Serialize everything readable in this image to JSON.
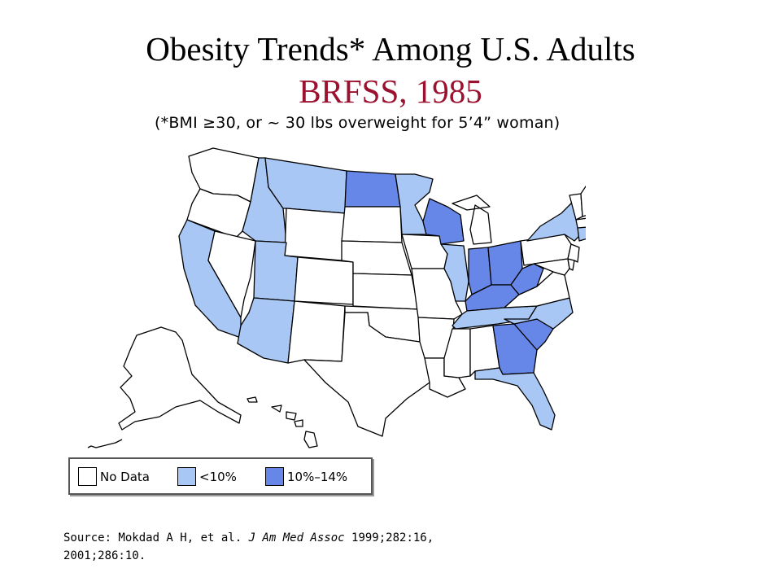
{
  "title": "Obesity Trends* Among U.S. Adults",
  "subtitle": "BRFSS, 1985",
  "note": "(*BMI ≥30, or ~ 30 lbs overweight for 5’4” woman)",
  "colors": {
    "no_data": "#ffffff",
    "lt10": "#a8c7f4",
    "p10_14": "#6687e8",
    "subtitle": "#9b1230",
    "border": "#000000"
  },
  "legend": [
    {
      "label": "No Data",
      "color_key": "no_data"
    },
    {
      "label": "<10%",
      "color_key": "lt10"
    },
    {
      "label": "10%–14%",
      "color_key": "p10_14"
    }
  ],
  "state_categories": {
    "no_data": [
      "Washington",
      "Oregon",
      "Nevada",
      "Wyoming",
      "Colorado",
      "New Mexico",
      "South Dakota",
      "Nebraska",
      "Kansas",
      "Oklahoma",
      "Texas",
      "Iowa",
      "Missouri",
      "Arkansas",
      "Louisiana",
      "Mississippi",
      "Alabama",
      "Michigan",
      "Pennsylvania",
      "New Jersey",
      "Delaware",
      "Maryland",
      "Virginia",
      "Vermont",
      "New Hampshire",
      "Maine",
      "Massachusetts",
      "Alaska",
      "Hawaii"
    ],
    "lt10": [
      "California",
      "Idaho",
      "Montana",
      "Utah",
      "Arizona",
      "Minnesota",
      "Illinois",
      "Tennessee",
      "North Carolina",
      "Florida",
      "New York",
      "Connecticut",
      "Rhode Island"
    ],
    "p10_14": [
      "North Dakota",
      "Wisconsin",
      "Indiana",
      "Ohio",
      "Kentucky",
      "West Virginia",
      "Georgia",
      "South Carolina"
    ]
  },
  "source": {
    "prefix": "Source: Mokdad A H, et al. ",
    "journal": "J Am Med Assoc",
    "rest1": " 1999;282:16,",
    "line2": "2001;286:10."
  }
}
